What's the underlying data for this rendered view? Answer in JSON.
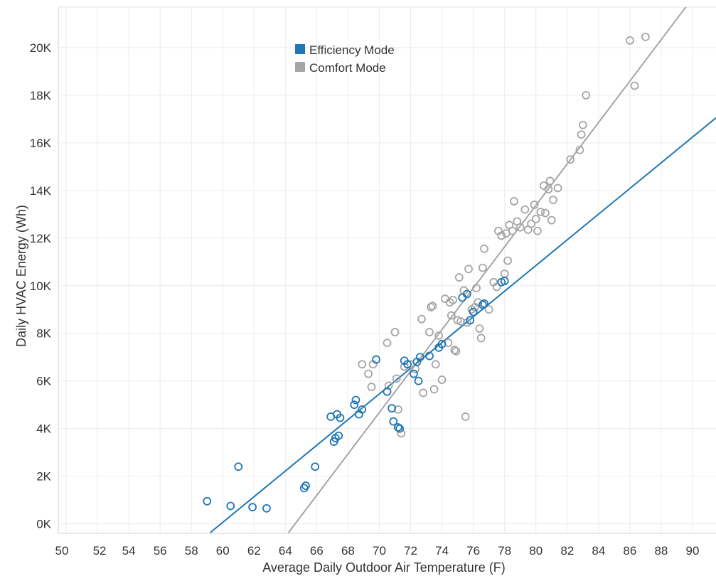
{
  "chart_data": {
    "type": "scatter",
    "title": "",
    "xlabel": "Average Daily Outdoor Air Temperature (F)",
    "ylabel": "Daily HVAC Energy (Wh)",
    "xlim": [
      49.5,
      91.5
    ],
    "ylim": [
      -400,
      21700
    ],
    "grid": true,
    "legend_position": "top-center",
    "x_ticks": [
      50,
      52,
      54,
      56,
      58,
      60,
      62,
      64,
      66,
      68,
      70,
      72,
      74,
      76,
      78,
      80,
      82,
      84,
      86,
      88,
      90
    ],
    "x_tick_labels": [
      "50",
      "52",
      "54",
      "56",
      "58",
      "60",
      "62",
      "64",
      "66",
      "68",
      "70",
      "72",
      "74",
      "76",
      "78",
      "80",
      "82",
      "84",
      "86",
      "88",
      "90"
    ],
    "y_ticks": [
      0,
      2000,
      4000,
      6000,
      8000,
      10000,
      12000,
      14000,
      16000,
      18000,
      20000
    ],
    "y_tick_labels": [
      "0K",
      "2K",
      "4K",
      "6K",
      "8K",
      "10K",
      "12K",
      "14K",
      "16K",
      "18K",
      "20K"
    ],
    "series": [
      {
        "name": "Efficiency Mode",
        "color": "#1f77b4",
        "trend": {
          "x": [
            59.2,
            91.5
          ],
          "y": [
            -370,
            17050
          ]
        },
        "points": [
          [
            59.0,
            950
          ],
          [
            60.5,
            750
          ],
          [
            61.0,
            2400
          ],
          [
            61.9,
            700
          ],
          [
            62.8,
            650
          ],
          [
            65.2,
            1500
          ],
          [
            65.3,
            1600
          ],
          [
            65.9,
            2400
          ],
          [
            66.9,
            4500
          ],
          [
            67.1,
            3450
          ],
          [
            67.2,
            3600
          ],
          [
            67.3,
            4600
          ],
          [
            67.4,
            3700
          ],
          [
            67.5,
            4450
          ],
          [
            68.4,
            5000
          ],
          [
            68.5,
            5200
          ],
          [
            68.7,
            4600
          ],
          [
            68.9,
            4800
          ],
          [
            69.8,
            6900
          ],
          [
            70.5,
            5550
          ],
          [
            70.8,
            4850
          ],
          [
            70.9,
            4300
          ],
          [
            71.2,
            4050
          ],
          [
            71.3,
            4000
          ],
          [
            71.6,
            6850
          ],
          [
            71.8,
            6700
          ],
          [
            72.2,
            6300
          ],
          [
            72.4,
            6800
          ],
          [
            72.5,
            6000
          ],
          [
            72.6,
            7000
          ],
          [
            73.2,
            7050
          ],
          [
            73.8,
            7400
          ],
          [
            74.0,
            7550
          ],
          [
            75.3,
            9500
          ],
          [
            75.6,
            9650
          ],
          [
            75.8,
            8550
          ],
          [
            76.0,
            8900
          ],
          [
            76.6,
            9200
          ],
          [
            76.7,
            9250
          ],
          [
            77.8,
            10150
          ],
          [
            78.0,
            10200
          ]
        ]
      },
      {
        "name": "Comfort Mode",
        "color": "#a5a5a5",
        "trend": {
          "x": [
            64.2,
            89.8
          ],
          "y": [
            -370,
            21900
          ]
        },
        "points": [
          [
            68.9,
            6700
          ],
          [
            69.3,
            6300
          ],
          [
            69.5,
            5750
          ],
          [
            69.6,
            6700
          ],
          [
            70.5,
            7600
          ],
          [
            70.6,
            5800
          ],
          [
            71.0,
            8050
          ],
          [
            71.1,
            6100
          ],
          [
            71.2,
            4800
          ],
          [
            71.4,
            3800
          ],
          [
            71.6,
            6600
          ],
          [
            72.0,
            6700
          ],
          [
            72.3,
            6500
          ],
          [
            72.7,
            8600
          ],
          [
            72.8,
            5500
          ],
          [
            73.2,
            8050
          ],
          [
            73.3,
            9100
          ],
          [
            73.4,
            9150
          ],
          [
            73.5,
            5650
          ],
          [
            73.6,
            6700
          ],
          [
            73.8,
            7900
          ],
          [
            74.0,
            6050
          ],
          [
            74.2,
            9450
          ],
          [
            74.4,
            7600
          ],
          [
            74.5,
            9300
          ],
          [
            74.6,
            8750
          ],
          [
            74.7,
            9400
          ],
          [
            74.8,
            7300
          ],
          [
            74.9,
            7250
          ],
          [
            75.0,
            8550
          ],
          [
            75.1,
            10350
          ],
          [
            75.2,
            8500
          ],
          [
            75.4,
            9800
          ],
          [
            75.5,
            4500
          ],
          [
            75.6,
            8450
          ],
          [
            75.7,
            10700
          ],
          [
            75.9,
            9000
          ],
          [
            76.1,
            9100
          ],
          [
            76.2,
            9900
          ],
          [
            76.3,
            9300
          ],
          [
            76.4,
            8200
          ],
          [
            76.5,
            7800
          ],
          [
            76.6,
            10750
          ],
          [
            76.7,
            11550
          ],
          [
            77.0,
            9000
          ],
          [
            77.3,
            10150
          ],
          [
            77.5,
            9950
          ],
          [
            77.6,
            12300
          ],
          [
            77.8,
            12100
          ],
          [
            78.0,
            10500
          ],
          [
            78.1,
            12200
          ],
          [
            78.2,
            11050
          ],
          [
            78.3,
            12550
          ],
          [
            78.5,
            12300
          ],
          [
            78.6,
            13550
          ],
          [
            78.8,
            12700
          ],
          [
            79.0,
            12450
          ],
          [
            79.3,
            13200
          ],
          [
            79.5,
            12350
          ],
          [
            79.7,
            12600
          ],
          [
            79.9,
            13400
          ],
          [
            80.0,
            12800
          ],
          [
            80.1,
            12300
          ],
          [
            80.3,
            13100
          ],
          [
            80.5,
            14200
          ],
          [
            80.6,
            13050
          ],
          [
            80.8,
            14050
          ],
          [
            80.9,
            14400
          ],
          [
            81.0,
            12750
          ],
          [
            81.1,
            13600
          ],
          [
            81.4,
            14100
          ],
          [
            82.2,
            15300
          ],
          [
            82.8,
            15700
          ],
          [
            82.9,
            16350
          ],
          [
            83.0,
            16750
          ],
          [
            83.2,
            18000
          ],
          [
            86.0,
            20300
          ],
          [
            86.3,
            18400
          ],
          [
            87.0,
            20450
          ]
        ]
      }
    ]
  }
}
